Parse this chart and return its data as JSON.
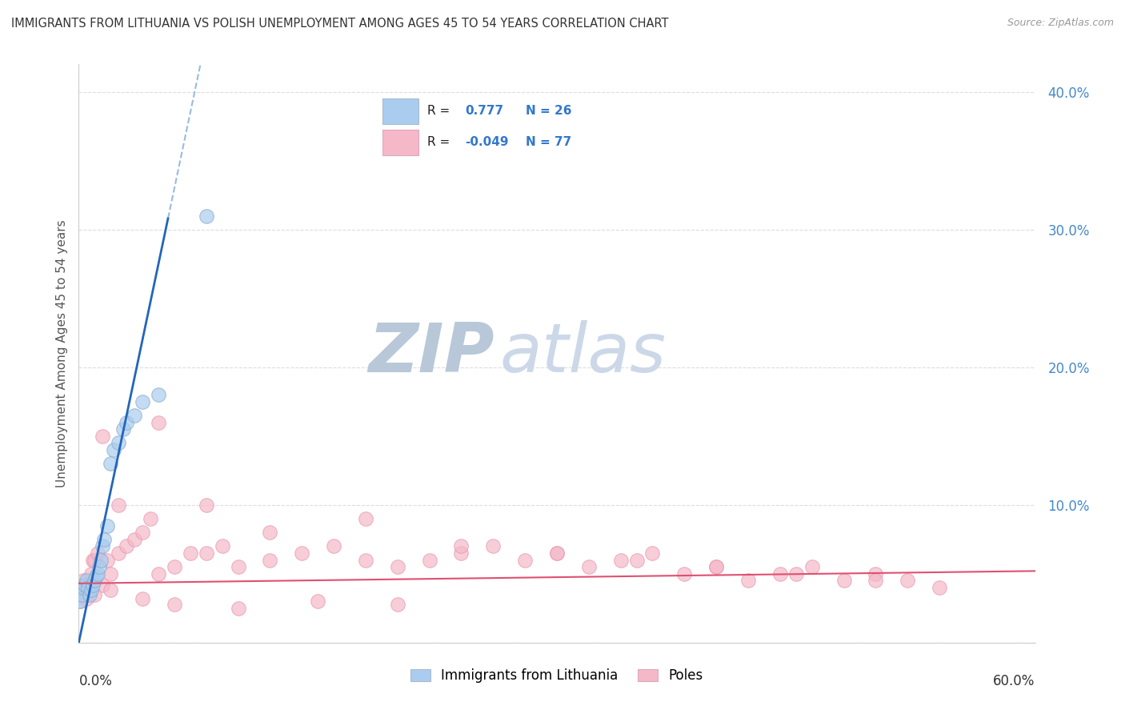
{
  "title": "IMMIGRANTS FROM LITHUANIA VS POLISH UNEMPLOYMENT AMONG AGES 45 TO 54 YEARS CORRELATION CHART",
  "source": "Source: ZipAtlas.com",
  "ylabel": "Unemployment Among Ages 45 to 54 years",
  "legend_label1": "Immigrants from Lithuania",
  "legend_label2": "Poles",
  "R1": 0.777,
  "N1": 26,
  "R2": -0.049,
  "N2": 77,
  "xlim": [
    0.0,
    0.6
  ],
  "ylim": [
    0.0,
    0.42
  ],
  "yticks": [
    0.0,
    0.1,
    0.2,
    0.3,
    0.4
  ],
  "ytick_labels": [
    "",
    "10.0%",
    "20.0%",
    "30.0%",
    "40.0%"
  ],
  "background_color": "#ffffff",
  "blue_scatter_fc": "#aaccee",
  "blue_scatter_ec": "#88aacc",
  "pink_scatter_fc": "#f5b8c8",
  "pink_scatter_ec": "#e898b0",
  "trend_blue_color": "#2266bb",
  "trend_pink_color": "#e05070",
  "dashed_color": "#99bbdd",
  "watermark_color": "#ccd8e8",
  "grid_color": "#dddddd",
  "lith_x": [
    0.001,
    0.002,
    0.003,
    0.004,
    0.005,
    0.006,
    0.007,
    0.008,
    0.009,
    0.01,
    0.011,
    0.012,
    0.013,
    0.014,
    0.015,
    0.016,
    0.018,
    0.02,
    0.022,
    0.025,
    0.028,
    0.03,
    0.035,
    0.04,
    0.05,
    0.08
  ],
  "lith_y": [
    0.03,
    0.035,
    0.04,
    0.042,
    0.045,
    0.04,
    0.035,
    0.038,
    0.042,
    0.045,
    0.048,
    0.05,
    0.055,
    0.06,
    0.07,
    0.075,
    0.085,
    0.13,
    0.14,
    0.145,
    0.155,
    0.16,
    0.165,
    0.175,
    0.18,
    0.31
  ],
  "poles_x": [
    0.001,
    0.001,
    0.002,
    0.002,
    0.002,
    0.003,
    0.003,
    0.004,
    0.004,
    0.005,
    0.005,
    0.006,
    0.007,
    0.008,
    0.009,
    0.01,
    0.012,
    0.015,
    0.018,
    0.02,
    0.025,
    0.03,
    0.035,
    0.04,
    0.045,
    0.05,
    0.06,
    0.07,
    0.08,
    0.09,
    0.1,
    0.12,
    0.14,
    0.16,
    0.18,
    0.2,
    0.22,
    0.24,
    0.26,
    0.28,
    0.3,
    0.32,
    0.34,
    0.36,
    0.38,
    0.4,
    0.42,
    0.44,
    0.46,
    0.48,
    0.5,
    0.52,
    0.54,
    0.003,
    0.007,
    0.015,
    0.025,
    0.05,
    0.08,
    0.12,
    0.18,
    0.24,
    0.3,
    0.35,
    0.4,
    0.45,
    0.5,
    0.001,
    0.005,
    0.01,
    0.02,
    0.04,
    0.06,
    0.1,
    0.15,
    0.2
  ],
  "poles_y": [
    0.04,
    0.038,
    0.042,
    0.035,
    0.04,
    0.038,
    0.045,
    0.042,
    0.04,
    0.038,
    0.042,
    0.04,
    0.038,
    0.05,
    0.06,
    0.06,
    0.065,
    0.15,
    0.06,
    0.05,
    0.065,
    0.07,
    0.075,
    0.08,
    0.09,
    0.05,
    0.055,
    0.065,
    0.065,
    0.07,
    0.055,
    0.06,
    0.065,
    0.07,
    0.06,
    0.055,
    0.06,
    0.065,
    0.07,
    0.06,
    0.065,
    0.055,
    0.06,
    0.065,
    0.05,
    0.055,
    0.045,
    0.05,
    0.055,
    0.045,
    0.05,
    0.045,
    0.04,
    0.035,
    0.04,
    0.042,
    0.1,
    0.16,
    0.1,
    0.08,
    0.09,
    0.07,
    0.065,
    0.06,
    0.055,
    0.05,
    0.045,
    0.03,
    0.032,
    0.035,
    0.038,
    0.032,
    0.028,
    0.025,
    0.03,
    0.028
  ]
}
